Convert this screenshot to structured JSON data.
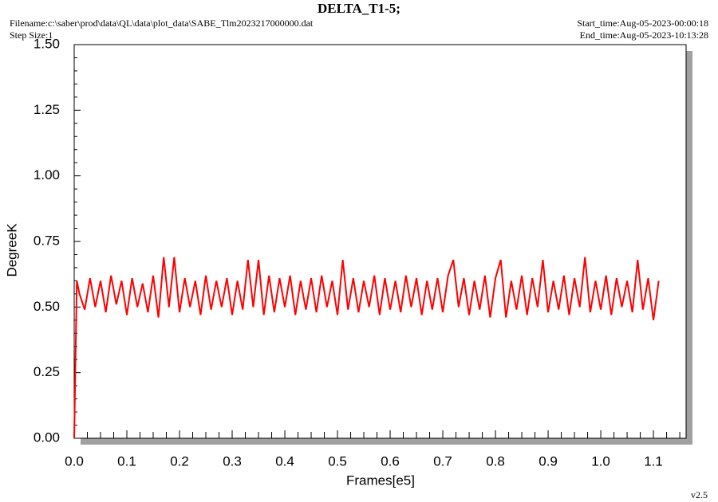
{
  "chart_data": {
    "type": "line",
    "title": "DELTA_T1-5;",
    "filename": "Filename:c:\\saber\\prod\\data\\QL\\data\\plot_data\\SABE_Tlm2023217000000.dat",
    "step_size": "Step Size:1",
    "start_time": "Start_time:Aug-05-2023-00:00:18",
    "end_time": "End_time:Aug-05-2023-10:13:28",
    "version": "v2.5",
    "xlabel": "Frames[e5]",
    "ylabel": "DegreeK",
    "xlim": [
      0,
      1.162
    ],
    "ylim": [
      0,
      1.5
    ],
    "xticks": [
      {
        "value": 0,
        "label": "0.0"
      },
      0.1,
      0.2,
      0.3,
      0.4,
      0.5,
      0.6,
      0.7,
      0.8,
      0.9,
      {
        "value": 1,
        "label": "1.0"
      },
      1.1
    ],
    "yticks": [
      {
        "value": 0,
        "label": "0.00"
      },
      0.25,
      {
        "value": 0.5,
        "label": "0.50"
      },
      0.75,
      {
        "value": 1,
        "label": "1.00"
      },
      1.25,
      {
        "value": 1.5,
        "label": "1.50"
      }
    ],
    "x": [
      0,
      0.005,
      0.01,
      0.02,
      0.03,
      0.04,
      0.05,
      0.06,
      0.07,
      0.08,
      0.09,
      0.1,
      0.11,
      0.12,
      0.13,
      0.14,
      0.15,
      0.16,
      0.17,
      0.18,
      0.19,
      0.2,
      0.21,
      0.22,
      0.23,
      0.24,
      0.25,
      0.26,
      0.27,
      0.28,
      0.29,
      0.3,
      0.31,
      0.32,
      0.33,
      0.34,
      0.35,
      0.36,
      0.37,
      0.38,
      0.39,
      0.4,
      0.41,
      0.42,
      0.43,
      0.44,
      0.45,
      0.46,
      0.47,
      0.48,
      0.49,
      0.5,
      0.51,
      0.52,
      0.53,
      0.54,
      0.55,
      0.56,
      0.57,
      0.58,
      0.59,
      0.6,
      0.61,
      0.62,
      0.63,
      0.64,
      0.65,
      0.66,
      0.67,
      0.68,
      0.69,
      0.7,
      0.71,
      0.72,
      0.73,
      0.74,
      0.75,
      0.76,
      0.77,
      0.78,
      0.79,
      0.8,
      0.81,
      0.82,
      0.83,
      0.84,
      0.85,
      0.86,
      0.87,
      0.88,
      0.89,
      0.9,
      0.91,
      0.92,
      0.93,
      0.94,
      0.95,
      0.96,
      0.97,
      0.98,
      0.99,
      1.0,
      1.01,
      1.02,
      1.03,
      1.04,
      1.05,
      1.06,
      1.07,
      1.08,
      1.09,
      1.1,
      1.11
    ],
    "series": [
      {
        "color": "#ff0000",
        "values": [
          0,
          0.6,
          0.55,
          0.49,
          0.61,
          0.5,
          0.6,
          0.48,
          0.62,
          0.51,
          0.6,
          0.47,
          0.61,
          0.5,
          0.59,
          0.48,
          0.62,
          0.46,
          0.69,
          0.5,
          0.69,
          0.48,
          0.61,
          0.5,
          0.6,
          0.47,
          0.62,
          0.49,
          0.6,
          0.5,
          0.61,
          0.47,
          0.6,
          0.49,
          0.68,
          0.5,
          0.68,
          0.47,
          0.62,
          0.48,
          0.61,
          0.5,
          0.62,
          0.47,
          0.6,
          0.49,
          0.61,
          0.48,
          0.62,
          0.5,
          0.6,
          0.47,
          0.68,
          0.49,
          0.61,
          0.48,
          0.6,
          0.5,
          0.62,
          0.47,
          0.61,
          0.49,
          0.6,
          0.48,
          0.62,
          0.5,
          0.61,
          0.47,
          0.6,
          0.49,
          0.61,
          0.48,
          0.62,
          0.68,
          0.5,
          0.61,
          0.47,
          0.6,
          0.49,
          0.62,
          0.46,
          0.61,
          0.68,
          0.46,
          0.6,
          0.49,
          0.62,
          0.47,
          0.61,
          0.5,
          0.68,
          0.48,
          0.6,
          0.49,
          0.62,
          0.47,
          0.61,
          0.5,
          0.69,
          0.48,
          0.6,
          0.49,
          0.62,
          0.47,
          0.61,
          0.5,
          0.6,
          0.48,
          0.68,
          0.49,
          0.61,
          0.45,
          0.6
        ]
      }
    ]
  }
}
